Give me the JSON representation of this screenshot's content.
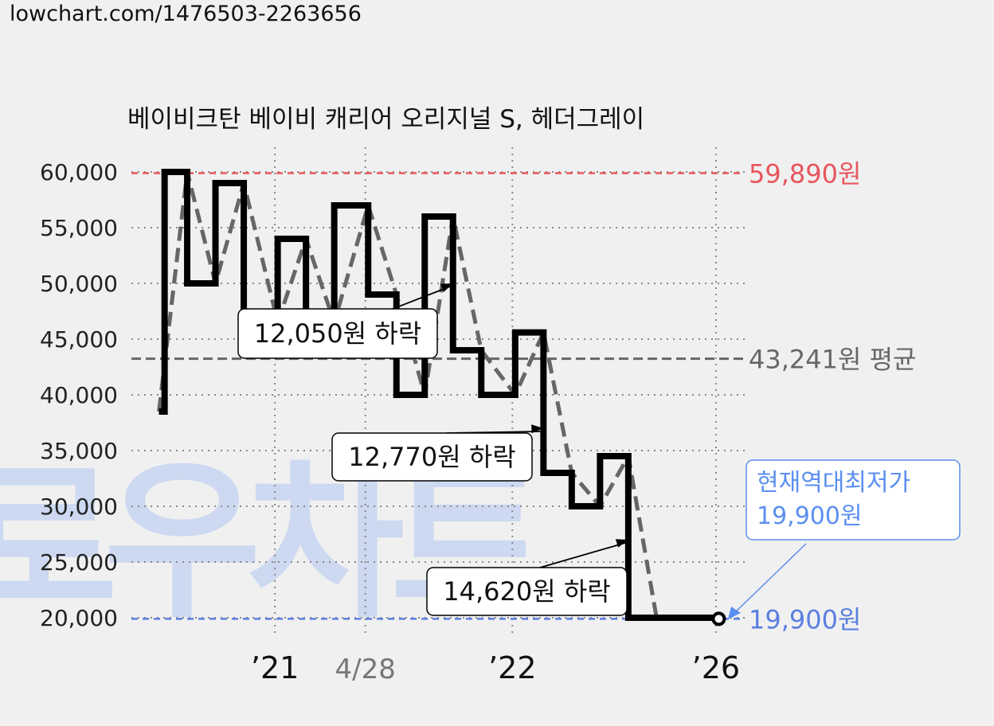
{
  "page": {
    "url": "lowchart.com/1476503-2263656",
    "watermark": "로우차트"
  },
  "colors": {
    "background": "#f0f0f0",
    "max_line": "#e8555d",
    "min_line": "#5b7fe0",
    "avg_line": "#666666",
    "price_line": "#000000",
    "trend_line": "#666666",
    "grid": "#888888",
    "min_callout": "#5b8ff0",
    "watermark": "#c8d6f2"
  },
  "chart_data": {
    "type": "line",
    "title": "베이비크탄 베이비 캐리어 오리지널 S, 헤더그레이",
    "ylim": [
      18500,
      61500
    ],
    "yticks": [
      60000,
      55000,
      50000,
      45000,
      40000,
      35000,
      30000,
      25000,
      20000
    ],
    "ytick_labels": [
      "60,000",
      "55,000",
      "50,000",
      "45,000",
      "40,000",
      "35,000",
      "30,000",
      "25,000",
      "20,000"
    ],
    "xlim": [
      0,
      100
    ],
    "xticks": [
      {
        "x": 21,
        "label": "’21",
        "style": "year"
      },
      {
        "x": 37,
        "label": "4/28",
        "style": "date"
      },
      {
        "x": 63,
        "label": "’22",
        "style": "year"
      },
      {
        "x": 99,
        "label": "’26",
        "style": "year"
      }
    ],
    "series": [
      {
        "kind": "step",
        "x": [
          0.5,
          1.5,
          5.5,
          10.5,
          15.5,
          21.5,
          26.5,
          31.5,
          37.5,
          42.5,
          47.5,
          52.5,
          57.5,
          63.5,
          68.5,
          73.5,
          78.5,
          83.5,
          88.5,
          94.5,
          99.5
        ],
        "values": [
          38500,
          60000,
          50000,
          59000,
          46500,
          54000,
          46500,
          57000,
          49000,
          40000,
          56000,
          44000,
          40000,
          45600,
          33000,
          30000,
          34500,
          20000,
          20000,
          20000,
          20000
        ]
      },
      {
        "kind": "trend",
        "x": [
          0.5,
          5.5,
          10.5,
          15.5,
          21.5,
          26.5,
          31.5,
          37.5,
          42.5,
          47.5,
          52.5,
          57.5,
          63.5,
          68.5,
          73.5,
          78.5,
          83.5,
          88.5,
          94.5
        ],
        "values": [
          38500,
          60000,
          50000,
          59000,
          46500,
          54000,
          46500,
          57000,
          49000,
          40000,
          56000,
          44000,
          40000,
          45600,
          33000,
          30000,
          34500,
          20000,
          20000
        ]
      }
    ],
    "reference_lines": [
      {
        "name": "max",
        "y": 59890,
        "label": "59,890원"
      },
      {
        "name": "avg",
        "y": 43241,
        "label": "43,241원 평균"
      },
      {
        "name": "min",
        "y": 19900,
        "label": "19,900원"
      }
    ],
    "annotations": [
      {
        "text": "12,050원 하락",
        "arrow_to": [
          52.5,
          50000
        ]
      },
      {
        "text": "12,770원 하락",
        "arrow_to": [
          68.5,
          37000
        ]
      },
      {
        "text": "14,620원 하락",
        "arrow_to": [
          83.5,
          27000
        ]
      }
    ],
    "current_point": {
      "x": 99.5,
      "y": 19900
    },
    "min_callout": {
      "line1": "현재역대최저가",
      "line2": "19,900원"
    }
  }
}
